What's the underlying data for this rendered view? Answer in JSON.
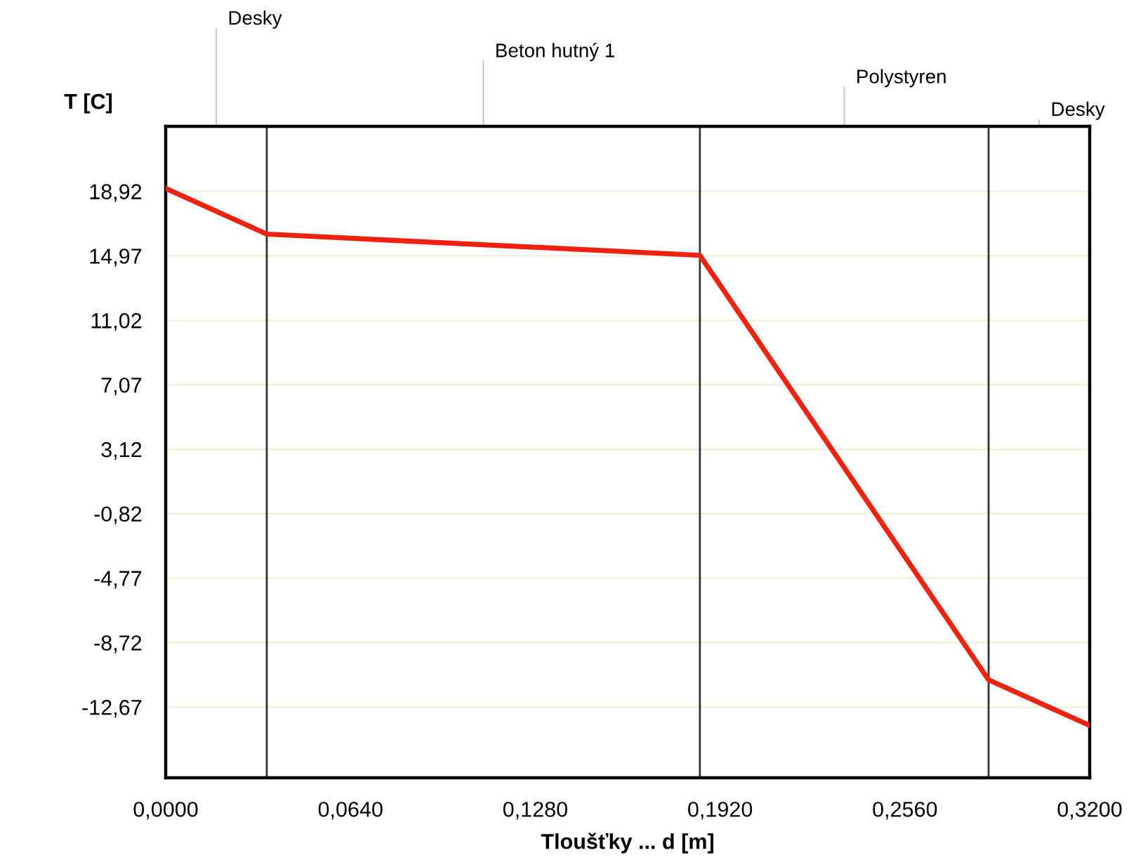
{
  "chart_data": {
    "type": "line",
    "xlabel": "Tloušťky ... d [m]",
    "ylabel": "T [C]",
    "x": [
      0.0,
      0.035,
      0.185,
      0.285,
      0.32
    ],
    "series": [
      {
        "color": "#ee2211",
        "values": [
          19.1,
          16.3,
          15.0,
          -11.0,
          -13.8
        ]
      }
    ],
    "xlim": [
      0.0,
      0.32
    ],
    "ylim": [
      -17.0,
      22.9
    ],
    "xticks": [
      {
        "value": 0.0,
        "label": "0,0000"
      },
      {
        "value": 0.064,
        "label": "0,0640"
      },
      {
        "value": 0.128,
        "label": "0,1280"
      },
      {
        "value": 0.192,
        "label": "0,1920"
      },
      {
        "value": 0.256,
        "label": "0,2560"
      },
      {
        "value": 0.32,
        "label": "0,3200"
      }
    ],
    "yticks": [
      {
        "value": 18.92,
        "label": "18,92"
      },
      {
        "value": 14.97,
        "label": "14,97"
      },
      {
        "value": 11.02,
        "label": "11,02"
      },
      {
        "value": 7.07,
        "label": "7,07"
      },
      {
        "value": 3.12,
        "label": "3,12"
      },
      {
        "value": -0.82,
        "label": "-0,82"
      },
      {
        "value": -4.77,
        "label": "-4,77"
      },
      {
        "value": -8.72,
        "label": "-8,72"
      },
      {
        "value": -12.67,
        "label": "-12,67"
      }
    ],
    "ref_lines": [
      {
        "axis": "x",
        "value": 0.035
      },
      {
        "axis": "x",
        "value": 0.185
      },
      {
        "axis": "x",
        "value": 0.285
      }
    ],
    "annotations": [
      "Desky",
      "Beton hutný 1",
      "Polystyren",
      "Desky"
    ],
    "grid": "y",
    "legend": false,
    "marker": "none",
    "line_style": "solid"
  }
}
